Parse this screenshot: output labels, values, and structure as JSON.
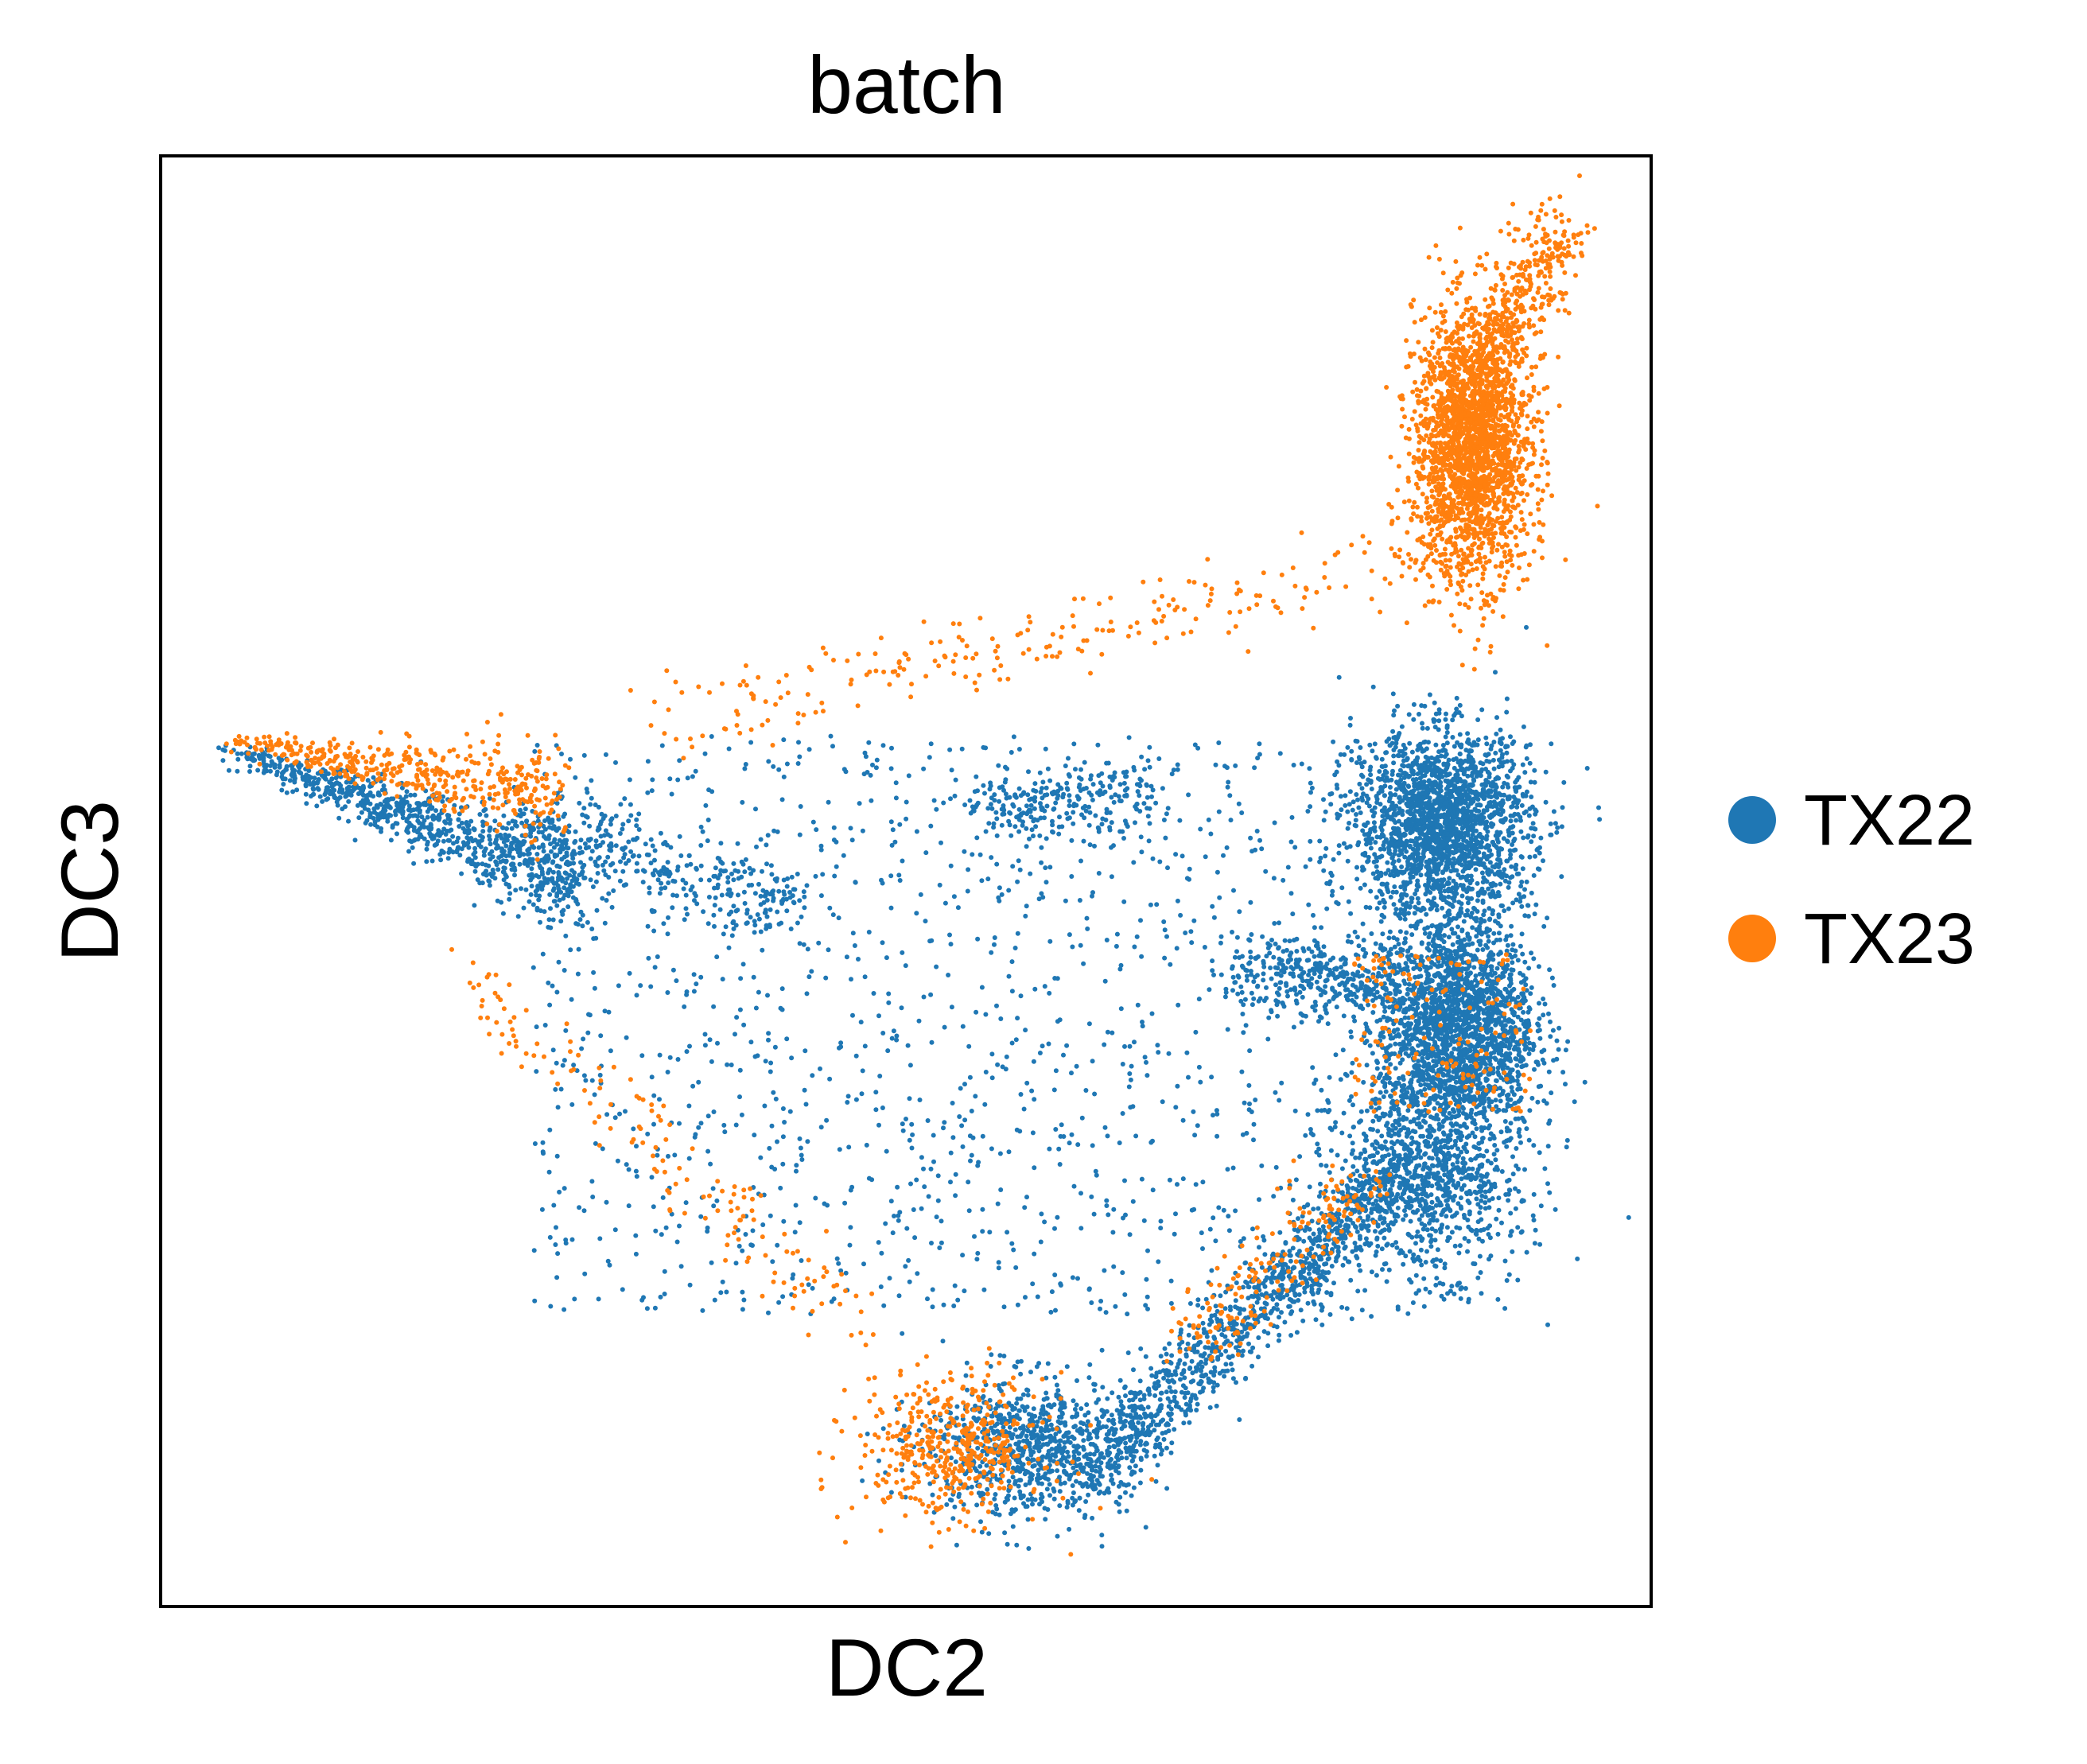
{
  "chart_data": {
    "type": "scatter",
    "title": "batch",
    "xlabel": "DC2",
    "ylabel": "DC3",
    "xlim": [
      0,
      100
    ],
    "ylim": [
      0,
      100
    ],
    "ticks": false,
    "grid": false,
    "legend_position": "right",
    "series": [
      {
        "name": "TX22",
        "color": "#1f77b4",
        "clusters": [
          {
            "x": [
              5,
              28
            ],
            "y": [
              49,
              61
            ],
            "n": 900,
            "shape": "wedge",
            "tip": [
              5,
              59
            ],
            "end": [
              28,
              50
            ]
          },
          {
            "x": [
              24,
              42
            ],
            "y": [
              47,
              55
            ],
            "n": 350,
            "shape": "band",
            "from": [
              24,
              54
            ],
            "to": [
              42,
              48
            ]
          },
          {
            "cx": 86,
            "cy": 54,
            "rx": 4.2,
            "ry": 4.5,
            "n": 2000,
            "shape": "blob"
          },
          {
            "cx": 87,
            "cy": 40,
            "rx": 3.7,
            "ry": 5.5,
            "n": 2000,
            "shape": "blob"
          },
          {
            "cx": 85,
            "cy": 30,
            "rx": 4.5,
            "ry": 5.0,
            "n": 900,
            "shape": "blob"
          },
          {
            "x": [
              62,
              83
            ],
            "y": [
              9,
              30
            ],
            "n": 1100,
            "shape": "band",
            "from": [
              83,
              30
            ],
            "to": [
              62,
              9
            ]
          },
          {
            "cx": 58,
            "cy": 11,
            "rx": 5.0,
            "ry": 3.5,
            "n": 800,
            "shape": "blob"
          },
          {
            "x": [
              73,
              83
            ],
            "y": [
              43,
              47
            ],
            "n": 350,
            "shape": "band",
            "from": [
              73,
              44
            ],
            "to": [
              83,
              43
            ]
          },
          {
            "x": [
              56,
              66
            ],
            "y": [
              52,
              56
            ],
            "n": 250,
            "shape": "band",
            "from": [
              56,
              55
            ],
            "to": [
              66,
              56
            ]
          },
          {
            "x": [
              25,
              92
            ],
            "y": [
              20,
              60
            ],
            "n": 1500,
            "shape": "scatter"
          }
        ]
      },
      {
        "name": "TX23",
        "color": "#ff7f0e",
        "clusters": [
          {
            "cx": 88,
            "cy": 80,
            "rx": 2.8,
            "ry": 6.5,
            "n": 2200,
            "shape": "blob"
          },
          {
            "x": [
              83,
              94
            ],
            "y": [
              86,
              95
            ],
            "n": 400,
            "shape": "band",
            "from": [
              88,
              84
            ],
            "to": [
              94,
              95
            ]
          },
          {
            "x": [
              5,
              27
            ],
            "y": [
              56,
              61
            ],
            "n": 450,
            "shape": "wedge",
            "tip": [
              5,
              59.5
            ],
            "end": [
              27,
              56
            ]
          },
          {
            "x": [
              48,
              58
            ],
            "y": [
              7,
              16
            ],
            "n": 450,
            "shape": "blob2",
            "cx": 53,
            "cy": 11,
            "rx": 4.5,
            "ry": 3.5
          },
          {
            "x": [
              68,
              80
            ],
            "y": [
              17,
              28
            ],
            "n": 180,
            "shape": "band",
            "from": [
              69,
              18
            ],
            "to": [
              80,
              29
            ]
          },
          {
            "x": [
              33,
              88
            ],
            "y": [
              58,
              73
            ],
            "n": 250,
            "shape": "band",
            "from": [
              33,
              61
            ],
            "to": [
              88,
              73
            ]
          },
          {
            "x": [
              20,
              46
            ],
            "y": [
              20,
              46
            ],
            "n": 150,
            "shape": "band",
            "from": [
              20,
              44
            ],
            "to": [
              46,
              20
            ]
          },
          {
            "x": [
              80,
              92
            ],
            "y": [
              34,
              45
            ],
            "n": 150,
            "shape": "scatter"
          }
        ]
      }
    ]
  }
}
